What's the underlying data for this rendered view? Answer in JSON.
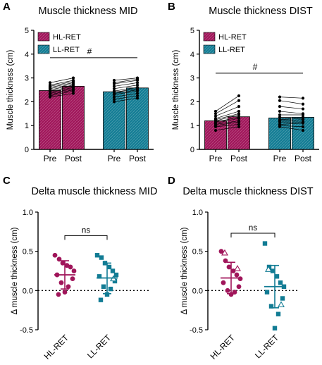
{
  "colors": {
    "hl": "#a0155a",
    "ll": "#127c94",
    "axis": "#000000"
  },
  "chart_data": [
    {
      "id": "A",
      "type": "bar",
      "panel_letter": "A",
      "title": "Muscle thickness MID",
      "ylabel": "Muscle thickness (cm)",
      "ylim": [
        0,
        5
      ],
      "yticks": [
        0,
        1,
        2,
        3,
        4,
        5
      ],
      "categories": [
        "Pre",
        "Post",
        "Pre",
        "Post"
      ],
      "legend": [
        {
          "name": "HL-RET",
          "color": "#a0155a"
        },
        {
          "name": "LL-RET",
          "color": "#127c94"
        }
      ],
      "legend_position": "top-left",
      "significance": "#",
      "series": [
        {
          "name": "HL-RET",
          "color": "#a0155a",
          "pre_mean": 2.47,
          "post_mean": 2.65,
          "pre": [
            2.2,
            2.25,
            2.3,
            2.35,
            2.4,
            2.45,
            2.5,
            2.55,
            2.6,
            2.65,
            2.7,
            2.8
          ],
          "post": [
            2.35,
            2.45,
            2.5,
            2.55,
            2.6,
            2.65,
            2.7,
            2.75,
            2.8,
            2.85,
            2.9,
            3.0
          ]
        },
        {
          "name": "LL-RET",
          "color": "#127c94",
          "pre_mean": 2.42,
          "post_mean": 2.58,
          "pre": [
            2.0,
            2.1,
            2.2,
            2.3,
            2.35,
            2.4,
            2.45,
            2.55,
            2.65,
            2.75,
            2.8,
            2.9
          ],
          "post": [
            2.15,
            2.25,
            2.35,
            2.45,
            2.5,
            2.55,
            2.6,
            2.7,
            2.8,
            2.9,
            2.95,
            3.0
          ]
        }
      ]
    },
    {
      "id": "B",
      "type": "bar",
      "panel_letter": "B",
      "title": "Muscle thickness DIST",
      "ylabel": "Muscle thickness (cm)",
      "ylim": [
        0,
        5
      ],
      "yticks": [
        0,
        1,
        2,
        3,
        4,
        5
      ],
      "categories": [
        "Pre",
        "Post",
        "Pre",
        "Post"
      ],
      "legend": [
        {
          "name": "HL-RET",
          "color": "#a0155a"
        },
        {
          "name": "LL-RET",
          "color": "#127c94"
        }
      ],
      "legend_position": "top-left",
      "significance": "#",
      "series": [
        {
          "name": "HL-RET",
          "color": "#a0155a",
          "pre_mean": 1.2,
          "post_mean": 1.37,
          "pre": [
            0.8,
            0.95,
            1.0,
            1.05,
            1.1,
            1.15,
            1.2,
            1.25,
            1.3,
            1.4,
            1.5,
            1.6
          ],
          "post": [
            0.95,
            1.05,
            1.15,
            1.2,
            1.3,
            1.35,
            1.45,
            1.5,
            1.6,
            1.8,
            2.05,
            2.25
          ]
        },
        {
          "name": "LL-RET",
          "color": "#127c94",
          "pre_mean": 1.32,
          "post_mean": 1.35,
          "pre": [
            0.95,
            1.0,
            1.05,
            1.15,
            1.2,
            1.25,
            1.35,
            1.45,
            1.6,
            1.8,
            2.05,
            2.2
          ],
          "post": [
            0.8,
            0.95,
            1.1,
            1.15,
            1.25,
            1.3,
            1.35,
            1.45,
            1.5,
            1.7,
            1.9,
            2.15
          ]
        }
      ]
    },
    {
      "id": "C",
      "type": "scatter",
      "panel_letter": "C",
      "title": "Delta muscle thickness MID",
      "ylabel": "Δ muscle thickness (cm)",
      "ylim": [
        -0.5,
        1.0
      ],
      "yticks": [
        "-0.5",
        "0.0",
        "0.5",
        "1.0"
      ],
      "categories": [
        "HL-RET",
        "LL-RET"
      ],
      "significance": "ns",
      "groups": [
        {
          "name": "HL-RET",
          "color": "#a0155a",
          "marker": "circle",
          "mean": 0.2,
          "sd_low": 0.02,
          "sd_high": 0.38,
          "points": [
            {
              "y": 0.45,
              "open": false
            },
            {
              "y": 0.4,
              "open": false
            },
            {
              "y": 0.35,
              "open": false
            },
            {
              "y": 0.32,
              "open": false
            },
            {
              "y": 0.3,
              "open": false
            },
            {
              "y": 0.25,
              "open": false
            },
            {
              "y": 0.2,
              "open": false
            },
            {
              "y": 0.15,
              "open": false
            },
            {
              "y": 0.1,
              "open": false
            },
            {
              "y": 0.05,
              "open": false
            },
            {
              "y": -0.02,
              "open": false
            },
            {
              "y": -0.05,
              "open": false
            }
          ]
        },
        {
          "name": "LL-RET",
          "color": "#127c94",
          "marker": "square",
          "mean": 0.16,
          "sd_low": -0.04,
          "sd_high": 0.35,
          "points": [
            {
              "y": 0.45,
              "open": false
            },
            {
              "y": 0.42,
              "open": false
            },
            {
              "y": 0.35,
              "open": false
            },
            {
              "y": 0.3,
              "open": false
            },
            {
              "y": 0.25,
              "open": false
            },
            {
              "y": 0.2,
              "open": false
            },
            {
              "y": 0.18,
              "open": false
            },
            {
              "y": 0.12,
              "open": false
            },
            {
              "y": 0.05,
              "open": false
            },
            {
              "y": 0.02,
              "open": false
            },
            {
              "y": -0.05,
              "open": false
            },
            {
              "y": -0.12,
              "open": false
            },
            {
              "y": 0.15,
              "open": true
            }
          ]
        }
      ]
    },
    {
      "id": "D",
      "type": "scatter",
      "panel_letter": "D",
      "title": "Delta muscle thickness DIST",
      "ylabel": "Δ muscle thickness (cm)",
      "ylim": [
        -0.5,
        1.0
      ],
      "yticks": [
        "-0.5",
        "0.0",
        "0.5",
        "1.0"
      ],
      "categories": [
        "HL-RET",
        "LL-RET"
      ],
      "significance": "ns",
      "groups": [
        {
          "name": "HL-RET",
          "color": "#a0155a",
          "marker": "circle",
          "mean": 0.16,
          "sd_low": -0.04,
          "sd_high": 0.36,
          "points": [
            {
              "y": 0.5,
              "open": false
            },
            {
              "y": 0.38,
              "open": false
            },
            {
              "y": 0.3,
              "open": false
            },
            {
              "y": 0.25,
              "open": false
            },
            {
              "y": 0.2,
              "open": false
            },
            {
              "y": 0.15,
              "open": false
            },
            {
              "y": 0.1,
              "open": false
            },
            {
              "y": 0.05,
              "open": false
            },
            {
              "y": 0.0,
              "open": false
            },
            {
              "y": -0.02,
              "open": false
            },
            {
              "y": -0.05,
              "open": false
            },
            {
              "y": 0.48,
              "open": true
            },
            {
              "y": 0.28,
              "open": true
            }
          ]
        },
        {
          "name": "LL-RET",
          "color": "#127c94",
          "marker": "square",
          "mean": 0.05,
          "sd_low": -0.22,
          "sd_high": 0.32,
          "points": [
            {
              "y": 0.6,
              "open": false
            },
            {
              "y": 0.3,
              "open": false
            },
            {
              "y": 0.25,
              "open": false
            },
            {
              "y": 0.18,
              "open": false
            },
            {
              "y": 0.1,
              "open": false
            },
            {
              "y": 0.05,
              "open": false
            },
            {
              "y": -0.02,
              "open": false
            },
            {
              "y": -0.1,
              "open": false
            },
            {
              "y": -0.2,
              "open": false
            },
            {
              "y": -0.3,
              "open": false
            },
            {
              "y": -0.48,
              "open": false
            },
            {
              "y": 0.27,
              "open": true
            },
            {
              "y": -0.18,
              "open": true
            }
          ]
        }
      ]
    }
  ]
}
